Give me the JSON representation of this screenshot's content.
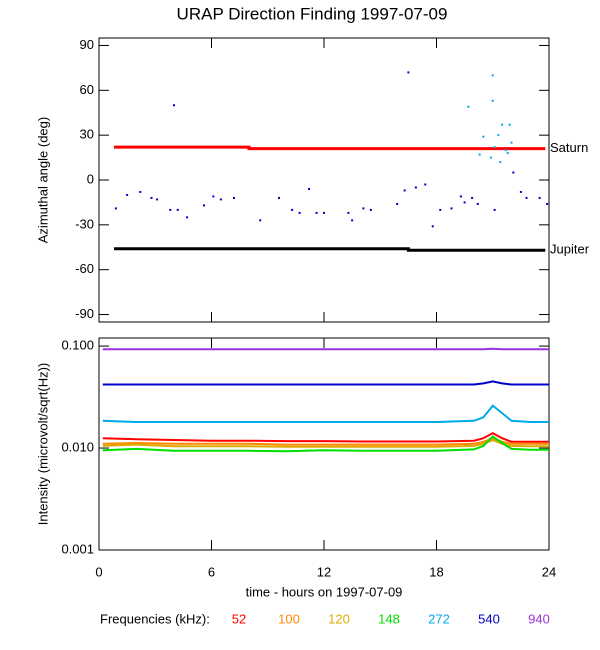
{
  "chart_data": [
    {
      "type": "line",
      "title": "URAP Direction Finding  1997-07-09",
      "ylabel": "Azimuthal angle (deg)",
      "xlim": [
        0,
        24
      ],
      "xticks": [
        0,
        6,
        12,
        18,
        24
      ],
      "ylim": [
        -95,
        95
      ],
      "yticks": [
        90,
        60,
        30,
        0,
        -30,
        -60,
        -90
      ],
      "legend": "line-end",
      "series": [
        {
          "name": "Saturn",
          "color": "#ff0000",
          "x": [
            0.8,
            8,
            8,
            23.8
          ],
          "values": [
            22,
            22,
            21,
            21
          ]
        },
        {
          "name": "Jupiter",
          "color": "#000000",
          "x": [
            0.8,
            16.5,
            16.5,
            23.8
          ],
          "values": [
            -46,
            -46,
            -47,
            -47
          ]
        },
        {
          "type": "scatter",
          "color": "#0000cc",
          "x": [
            0.9,
            1.5,
            2.2,
            2.8,
            3.1,
            3.8,
            4.0,
            4.2,
            4.7,
            5.6,
            6.1,
            6.5,
            7.2,
            8.6,
            9.6,
            10.3,
            10.7,
            11.2,
            11.6,
            12.0,
            13.3,
            13.5,
            14.1,
            14.5,
            15.9,
            16.3,
            16.5,
            16.9,
            17.4,
            17.8,
            18.2,
            18.8,
            19.3,
            19.5,
            19.9,
            20.2,
            21.1,
            22.1,
            22.5,
            22.8,
            23.5,
            23.9
          ],
          "values": [
            -19,
            -10,
            -8,
            -12,
            -13,
            -20,
            50,
            -20,
            -25,
            -17,
            -11,
            -13,
            -12,
            -27,
            -12,
            -20,
            -22,
            -6,
            -22,
            -22,
            -22,
            -27,
            -19,
            -20,
            -16,
            -7,
            72,
            -5,
            -3,
            -31,
            -20,
            -19,
            -11,
            -15,
            -12,
            -16,
            -20,
            5,
            -8,
            -12,
            -12,
            -16
          ]
        },
        {
          "type": "scatter",
          "color": "#00aadd",
          "x": [
            19.7,
            20.3,
            20.5,
            20.9,
            21.0,
            21.0,
            21.1,
            21.3,
            21.4,
            21.5,
            21.7,
            21.8,
            21.9,
            22.0
          ],
          "values": [
            49,
            17,
            29,
            15,
            70,
            53,
            22,
            30,
            12,
            37,
            20,
            18,
            37,
            25
          ]
        }
      ]
    },
    {
      "type": "line",
      "ylabel": "Intensity (microvolt/sqrt(Hz))",
      "xlabel": "time - hours on 1997-07-09",
      "xlim": [
        0,
        24
      ],
      "xticks": [
        0,
        6,
        12,
        18,
        24
      ],
      "ylim": [
        0.001,
        0.12
      ],
      "log_y": true,
      "yticks": [
        {
          "value": 0.1,
          "label": "0.100"
        },
        {
          "value": 0.01,
          "label": "0.010"
        },
        {
          "value": 0.001,
          "label": "0.001"
        }
      ],
      "legend": "bottom",
      "legend_title": "Frequencies (kHz):",
      "x": [
        0.2,
        2,
        4,
        6,
        8,
        10,
        12,
        14,
        16,
        18,
        20,
        20.5,
        21,
        21.5,
        22,
        23,
        24
      ],
      "series": [
        {
          "name": "52",
          "color": "#ff0000",
          "values": [
            0.0125,
            0.0122,
            0.012,
            0.0118,
            0.0118,
            0.0117,
            0.0117,
            0.0116,
            0.0116,
            0.0116,
            0.0118,
            0.0125,
            0.014,
            0.0125,
            0.0115,
            0.0115,
            0.0115
          ]
        },
        {
          "name": "100",
          "color": "#ff8800",
          "values": [
            0.011,
            0.0112,
            0.011,
            0.011,
            0.011,
            0.0108,
            0.0108,
            0.0108,
            0.0108,
            0.0108,
            0.011,
            0.0115,
            0.0125,
            0.0115,
            0.011,
            0.011,
            0.011
          ]
        },
        {
          "name": "120",
          "color": "#ddaa00",
          "values": [
            0.0105,
            0.0108,
            0.0104,
            0.0104,
            0.0104,
            0.0103,
            0.0103,
            0.0103,
            0.0103,
            0.0103,
            0.0105,
            0.011,
            0.012,
            0.011,
            0.0105,
            0.0104,
            0.0104
          ]
        },
        {
          "name": "148",
          "color": "#00dd00",
          "values": [
            0.0095,
            0.0098,
            0.0094,
            0.0094,
            0.0094,
            0.0093,
            0.0095,
            0.0094,
            0.0094,
            0.0094,
            0.0097,
            0.0105,
            0.013,
            0.0112,
            0.0098,
            0.0096,
            0.0096
          ]
        },
        {
          "name": "272",
          "color": "#00aaee",
          "values": [
            0.0185,
            0.018,
            0.018,
            0.018,
            0.018,
            0.018,
            0.018,
            0.018,
            0.018,
            0.018,
            0.0185,
            0.02,
            0.026,
            0.022,
            0.0185,
            0.018,
            0.018
          ]
        },
        {
          "name": "540",
          "color": "#0000cc",
          "values": [
            0.042,
            0.042,
            0.042,
            0.042,
            0.042,
            0.042,
            0.042,
            0.042,
            0.042,
            0.042,
            0.042,
            0.043,
            0.045,
            0.043,
            0.042,
            0.042,
            0.042
          ]
        },
        {
          "name": "940",
          "color": "#9933dd",
          "values": [
            0.093,
            0.093,
            0.093,
            0.093,
            0.093,
            0.093,
            0.093,
            0.093,
            0.093,
            0.093,
            0.093,
            0.093,
            0.094,
            0.093,
            0.093,
            0.093,
            0.093
          ]
        }
      ]
    }
  ]
}
